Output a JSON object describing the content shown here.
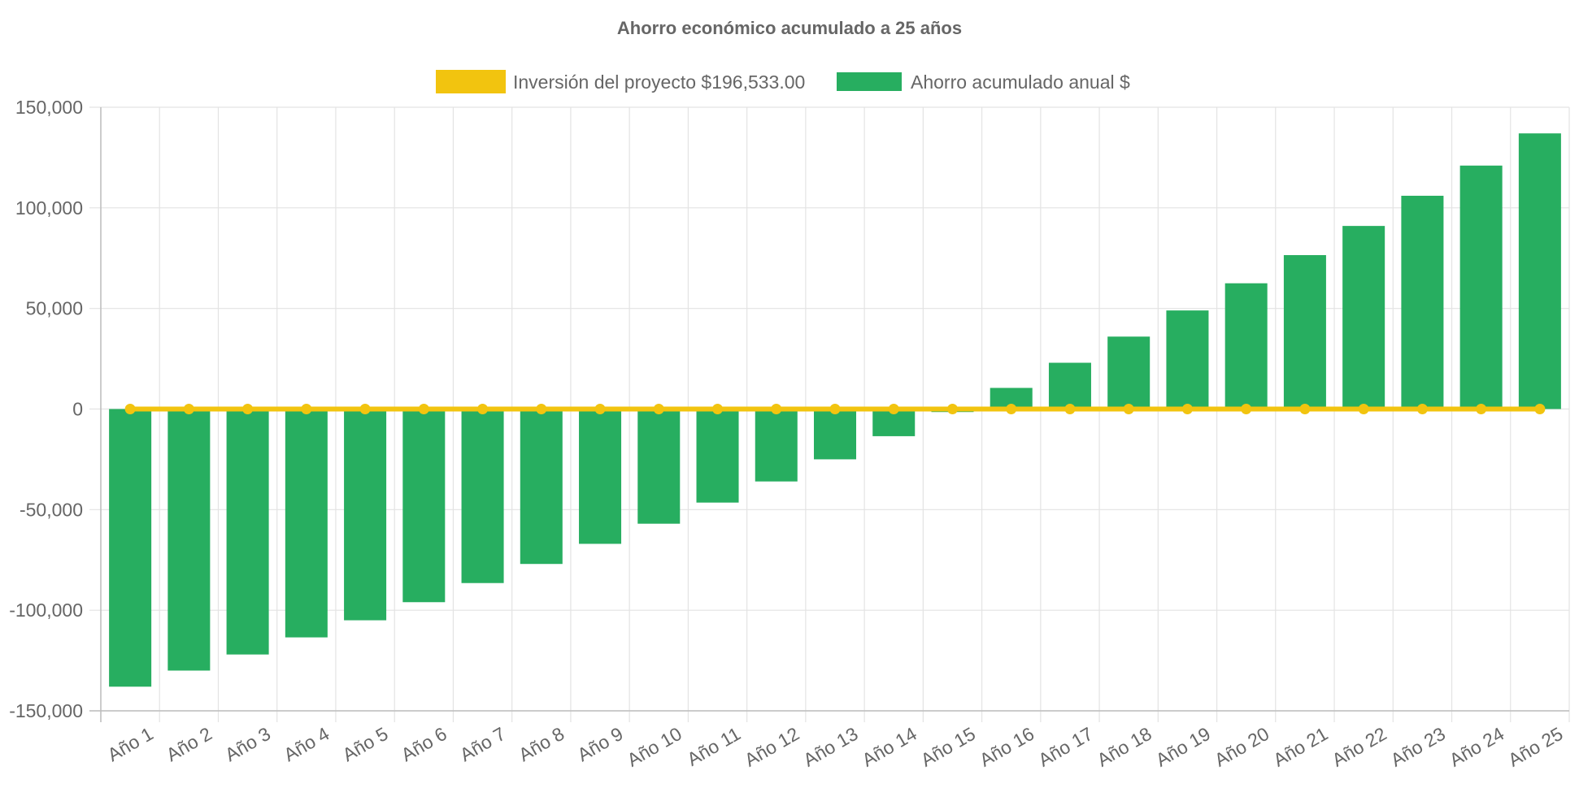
{
  "chart_data": {
    "type": "bar",
    "title": "Ahorro económico acumulado a 25 años",
    "categories": [
      "Año 1",
      "Año 2",
      "Año 3",
      "Año 4",
      "Año 5",
      "Año 6",
      "Año 7",
      "Año 8",
      "Año 9",
      "Año 10",
      "Año 11",
      "Año 12",
      "Año 13",
      "Año 14",
      "Año 15",
      "Año 16",
      "Año 17",
      "Año 18",
      "Año 19",
      "Año 20",
      "Año 21",
      "Año 22",
      "Año 23",
      "Año 24",
      "Año 25"
    ],
    "series": [
      {
        "name": "Inversión del proyecto $196,533.00",
        "type": "line",
        "color": "#f2c40f",
        "values": [
          0,
          0,
          0,
          0,
          0,
          0,
          0,
          0,
          0,
          0,
          0,
          0,
          0,
          0,
          0,
          0,
          0,
          0,
          0,
          0,
          0,
          0,
          0,
          0,
          0
        ]
      },
      {
        "name": "Ahorro acumulado anual $",
        "type": "bar",
        "color": "#27ae60",
        "values": [
          -138000,
          -130000,
          -122000,
          -113500,
          -105000,
          -96000,
          -86500,
          -77000,
          -67000,
          -57000,
          -46500,
          -36000,
          -25000,
          -13500,
          -1500,
          10500,
          23000,
          36000,
          49000,
          62500,
          76500,
          91000,
          106000,
          121000,
          137000
        ]
      }
    ],
    "xlabel": "",
    "ylabel": "",
    "ylim": [
      -150000,
      150000
    ],
    "yticks": [
      "150,000",
      "100,000",
      "50,000",
      "0",
      "-50,000",
      "-100,000",
      "-150,000"
    ],
    "ytick_values": [
      150000,
      100000,
      50000,
      0,
      -50000,
      -100000,
      -150000
    ],
    "grid": true,
    "legend_position": "top"
  }
}
